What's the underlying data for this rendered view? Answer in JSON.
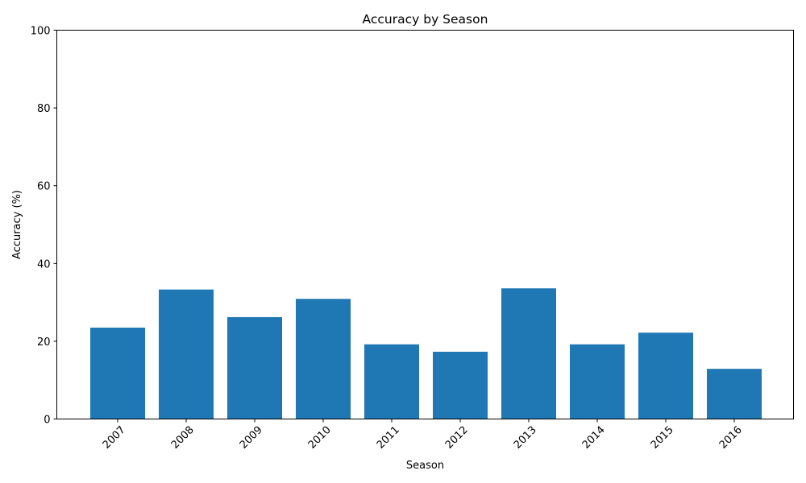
{
  "chart_data": {
    "type": "bar",
    "title": "Accuracy by Season",
    "xlabel": "Season",
    "ylabel": "Accuracy (%)",
    "categories": [
      "2007",
      "2008",
      "2009",
      "2010",
      "2011",
      "2012",
      "2013",
      "2014",
      "2015",
      "2016"
    ],
    "values": [
      23.5,
      33.3,
      26.2,
      30.9,
      19.2,
      17.3,
      33.6,
      19.2,
      22.2,
      12.9
    ],
    "ylim": [
      0,
      100
    ],
    "yticks": [
      0,
      20,
      40,
      60,
      80,
      100
    ],
    "bar_color": "#1f77b4",
    "grid": false,
    "xtick_rotation_deg": 45
  }
}
